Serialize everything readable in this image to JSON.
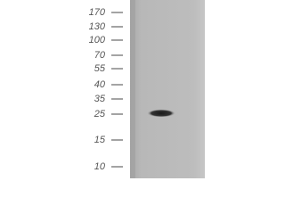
{
  "blot": {
    "markers": [
      "170",
      "130",
      "100",
      "70",
      "55",
      "40",
      "35",
      "25",
      "15",
      "10"
    ]
  }
}
